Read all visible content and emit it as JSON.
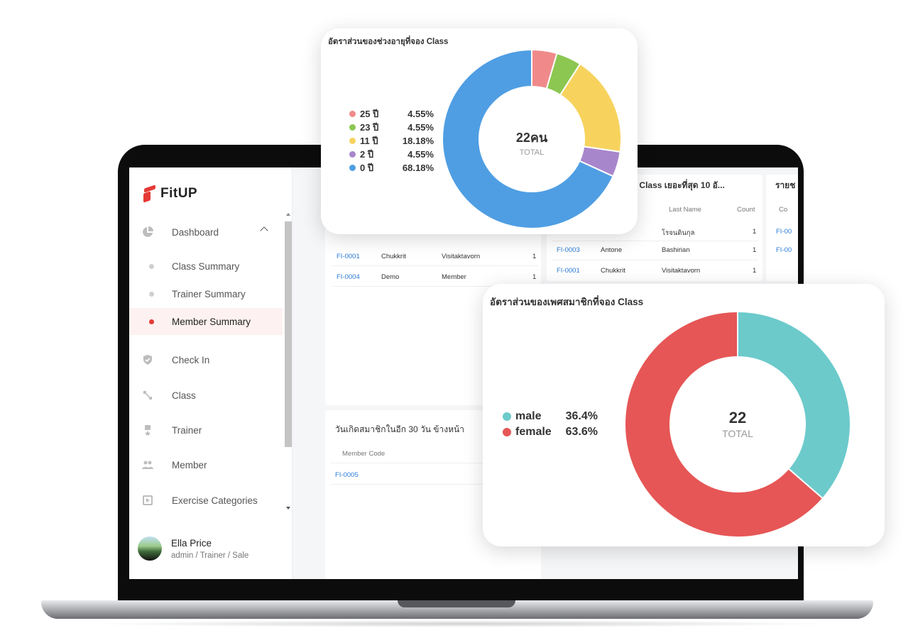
{
  "app": {
    "brand": "FitUP",
    "colors": {
      "accent": "#e53935",
      "link": "#2a7bd6"
    }
  },
  "sidebar": {
    "items": [
      {
        "label": "Dashboard",
        "icon": "pie-chart-icon",
        "expanded": true
      },
      {
        "label": "Class Summary",
        "sub": true
      },
      {
        "label": "Trainer Summary",
        "sub": true
      },
      {
        "label": "Member Summary",
        "sub": true,
        "active": true
      },
      {
        "label": "Check In",
        "icon": "check-badge-icon"
      },
      {
        "label": "Class",
        "icon": "dumbbell-icon"
      },
      {
        "label": "Trainer",
        "icon": "medal-icon"
      },
      {
        "label": "Member",
        "icon": "people-icon"
      },
      {
        "label": "Exercise Categories",
        "icon": "video-icon"
      }
    ],
    "user": {
      "name": "Ella Price",
      "role": "admin / Trainer / Sale"
    }
  },
  "top_left_table": {
    "rows": [
      {
        "code": "FI-0001",
        "first": "Chukkrit",
        "last": "Visitaktavorn",
        "count": "1"
      },
      {
        "code": "FI-0004",
        "first": "Demo",
        "last": "Member",
        "count": "1"
      }
    ]
  },
  "top_mid_table": {
    "title": "อง Class เยอะที่สุด 10 อั...",
    "headers": {
      "first": "e",
      "last": "Last Name",
      "count": "Count"
    },
    "rows": [
      {
        "code": "",
        "first": "",
        "last": "โรจนดินกุล",
        "count": "1"
      },
      {
        "code": "FI-0003",
        "first": "Antone",
        "last": "Bashirian",
        "count": "1"
      },
      {
        "code": "FI-0001",
        "first": "Chukkrit",
        "last": "Visitaktavorn",
        "count": "1"
      }
    ]
  },
  "top_right_table": {
    "title": "รายช",
    "header": "Co",
    "rows": [
      "FI-00",
      "FI-00"
    ]
  },
  "birthday_card": {
    "title": "วันเกิดสมาชิกในอีก 30 วัน ข้างหน้า",
    "header": "Member Code",
    "rows": [
      "FI-0005"
    ]
  },
  "age_chart_card": {
    "title": "อัตราส่วนของช่วงอายุที่จอง Class",
    "center_value": "22คน",
    "center_label": "TOTAL"
  },
  "gender_chart_card": {
    "title": "อัตราส่วนของเพศสมาชิกที่จอง Class",
    "center_value": "22",
    "center_label": "TOTAL"
  },
  "chart_data": [
    {
      "type": "pie",
      "donut": true,
      "title": "อัตราส่วนของช่วงอายุที่จอง Class",
      "total": 22,
      "categories": [
        "25 ปี",
        "23 ปี",
        "11 ปี",
        "2 ปี",
        "0 ปี"
      ],
      "values": [
        4.55,
        4.55,
        18.18,
        4.55,
        68.18
      ],
      "value_labels": [
        "4.55%",
        "4.55%",
        "18.18%",
        "4.55%",
        "68.18%"
      ],
      "colors": [
        "#f08a8a",
        "#8cc751",
        "#f7d35e",
        "#a886cc",
        "#4f9ee3"
      ],
      "legend": "left"
    },
    {
      "type": "pie",
      "donut": true,
      "title": "อัตราส่วนของเพศสมาชิกที่จอง Class",
      "total": 22,
      "categories": [
        "male",
        "female"
      ],
      "values": [
        36.4,
        63.6
      ],
      "value_labels": [
        "36.4%",
        "63.6%"
      ],
      "colors": [
        "#6ccacb",
        "#e65656"
      ],
      "legend": "left"
    }
  ]
}
